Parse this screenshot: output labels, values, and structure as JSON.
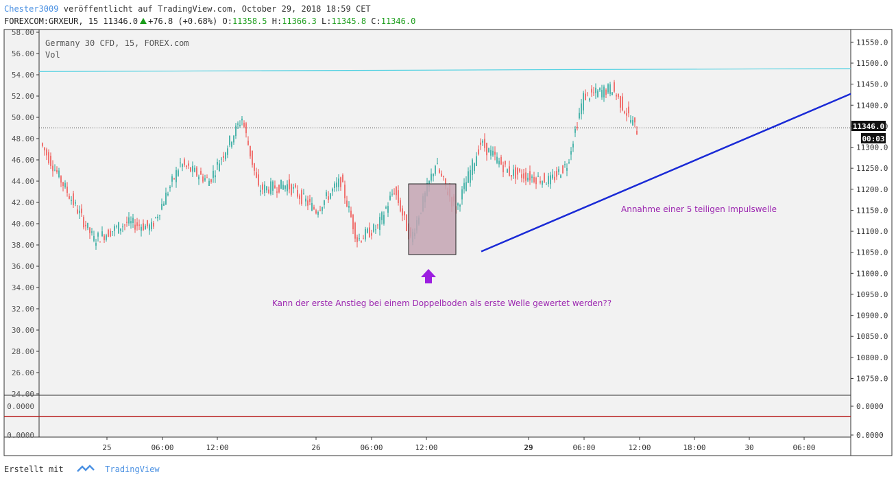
{
  "header": {
    "author": "Chester3009",
    "published": "veröffentlicht auf TradingView.com, October 29, 2018 18:59 CET",
    "symbol": "FOREXCOM:GRXEUR, 15",
    "last": "11346.0",
    "change": "+76.8 (+0.68%)",
    "o_label": "O:",
    "o_val": "11358.5",
    "h_label": "H:",
    "h_val": "11366.3",
    "l_label": "L:",
    "l_val": "11345.8",
    "c_label": "C:",
    "c_val": "11346.0"
  },
  "legend": {
    "line1": "Germany 30 CFD, 15, FOREX.com",
    "line2": "Vol"
  },
  "price_tag": "11346.0",
  "countdown_tag": "00:03",
  "annotations": {
    "impulse": "Annahme einer 5 teiligen Impulswelle",
    "question": "Kann der erste Anstieg bei einem Doppelboden als erste Welle gewertet werden??"
  },
  "footer": {
    "created": "Erstellt mit",
    "brand": "TradingView"
  },
  "colors": {
    "up": "#26a69a",
    "down": "#ef5350",
    "cyan_line": "#4dd0e1",
    "trend_line": "#1a2ad6",
    "annotation": "#9c27b0",
    "box_fill": "#c4a5b3"
  },
  "chart_data": {
    "type": "candlestick",
    "title": "",
    "right_axis_ticks": [
      "11550.0",
      "11500.0",
      "11450.0",
      "11400.0",
      "11350.0",
      "11300.0",
      "11250.0",
      "11200.0",
      "11150.0",
      "11100.0",
      "11050.0",
      "11000.0",
      "10950.0",
      "10900.0",
      "10850.0",
      "10800.0",
      "10750.0"
    ],
    "left_axis_ticks": [
      "58.00",
      "56.00",
      "54.00",
      "52.00",
      "50.00",
      "48.00",
      "46.00",
      "44.00",
      "42.00",
      "40.00",
      "38.00",
      "36.00",
      "34.00",
      "32.00",
      "30.00",
      "28.00",
      "26.00",
      "24.00"
    ],
    "sub_axis_ticks": [
      "0.0000",
      "0.0000"
    ],
    "sub_left_ticks": [
      "0.0000",
      "0.0000"
    ],
    "x_ticks": [
      {
        "label": "25",
        "bold": false
      },
      {
        "label": "06:00",
        "bold": false
      },
      {
        "label": "12:00",
        "bold": false
      },
      {
        "label": "26",
        "bold": false
      },
      {
        "label": "06:00",
        "bold": false
      },
      {
        "label": "12:00",
        "bold": false
      },
      {
        "label": "29",
        "bold": true
      },
      {
        "label": "06:00",
        "bold": false
      },
      {
        "label": "12:00",
        "bold": false
      },
      {
        "label": "18:00",
        "bold": false
      },
      {
        "label": "30",
        "bold": false
      },
      {
        "label": "06:00",
        "bold": false
      }
    ],
    "y_range": [
      10710,
      11580
    ],
    "last_price": 11346.0,
    "resistance_level": [
      11480,
      11487
    ],
    "trend_line": [
      [
        11052
      ],
      [
        11427
      ]
    ],
    "segments": [
      {
        "n": 18,
        "start": 11310,
        "end": 11150
      },
      {
        "n": 8,
        "start": 11150,
        "end": 11080
      },
      {
        "n": 16,
        "start": 11080,
        "end": 11120
      },
      {
        "n": 12,
        "start": 11120,
        "end": 11110
      },
      {
        "n": 14,
        "start": 11110,
        "end": 11260
      },
      {
        "n": 14,
        "start": 11260,
        "end": 11220
      },
      {
        "n": 16,
        "start": 11220,
        "end": 11370
      },
      {
        "n": 8,
        "start": 11370,
        "end": 11200
      },
      {
        "n": 14,
        "start": 11200,
        "end": 11210
      },
      {
        "n": 14,
        "start": 11210,
        "end": 11150
      },
      {
        "n": 12,
        "start": 11150,
        "end": 11220
      },
      {
        "n": 8,
        "start": 11220,
        "end": 11080
      },
      {
        "n": 10,
        "start": 11080,
        "end": 11110
      },
      {
        "n": 8,
        "start": 11110,
        "end": 11200
      },
      {
        "n": 8,
        "start": 11200,
        "end": 11080
      },
      {
        "n": 12,
        "start": 11080,
        "end": 11260
      },
      {
        "n": 10,
        "start": 11260,
        "end": 11150
      },
      {
        "n": 12,
        "start": 11150,
        "end": 11310
      },
      {
        "n": 14,
        "start": 11310,
        "end": 11240
      },
      {
        "n": 20,
        "start": 11240,
        "end": 11220
      },
      {
        "n": 8,
        "start": 11220,
        "end": 11260
      },
      {
        "n": 8,
        "start": 11260,
        "end": 11420
      },
      {
        "n": 14,
        "start": 11420,
        "end": 11440
      },
      {
        "n": 12,
        "start": 11440,
        "end": 11340
      }
    ]
  }
}
